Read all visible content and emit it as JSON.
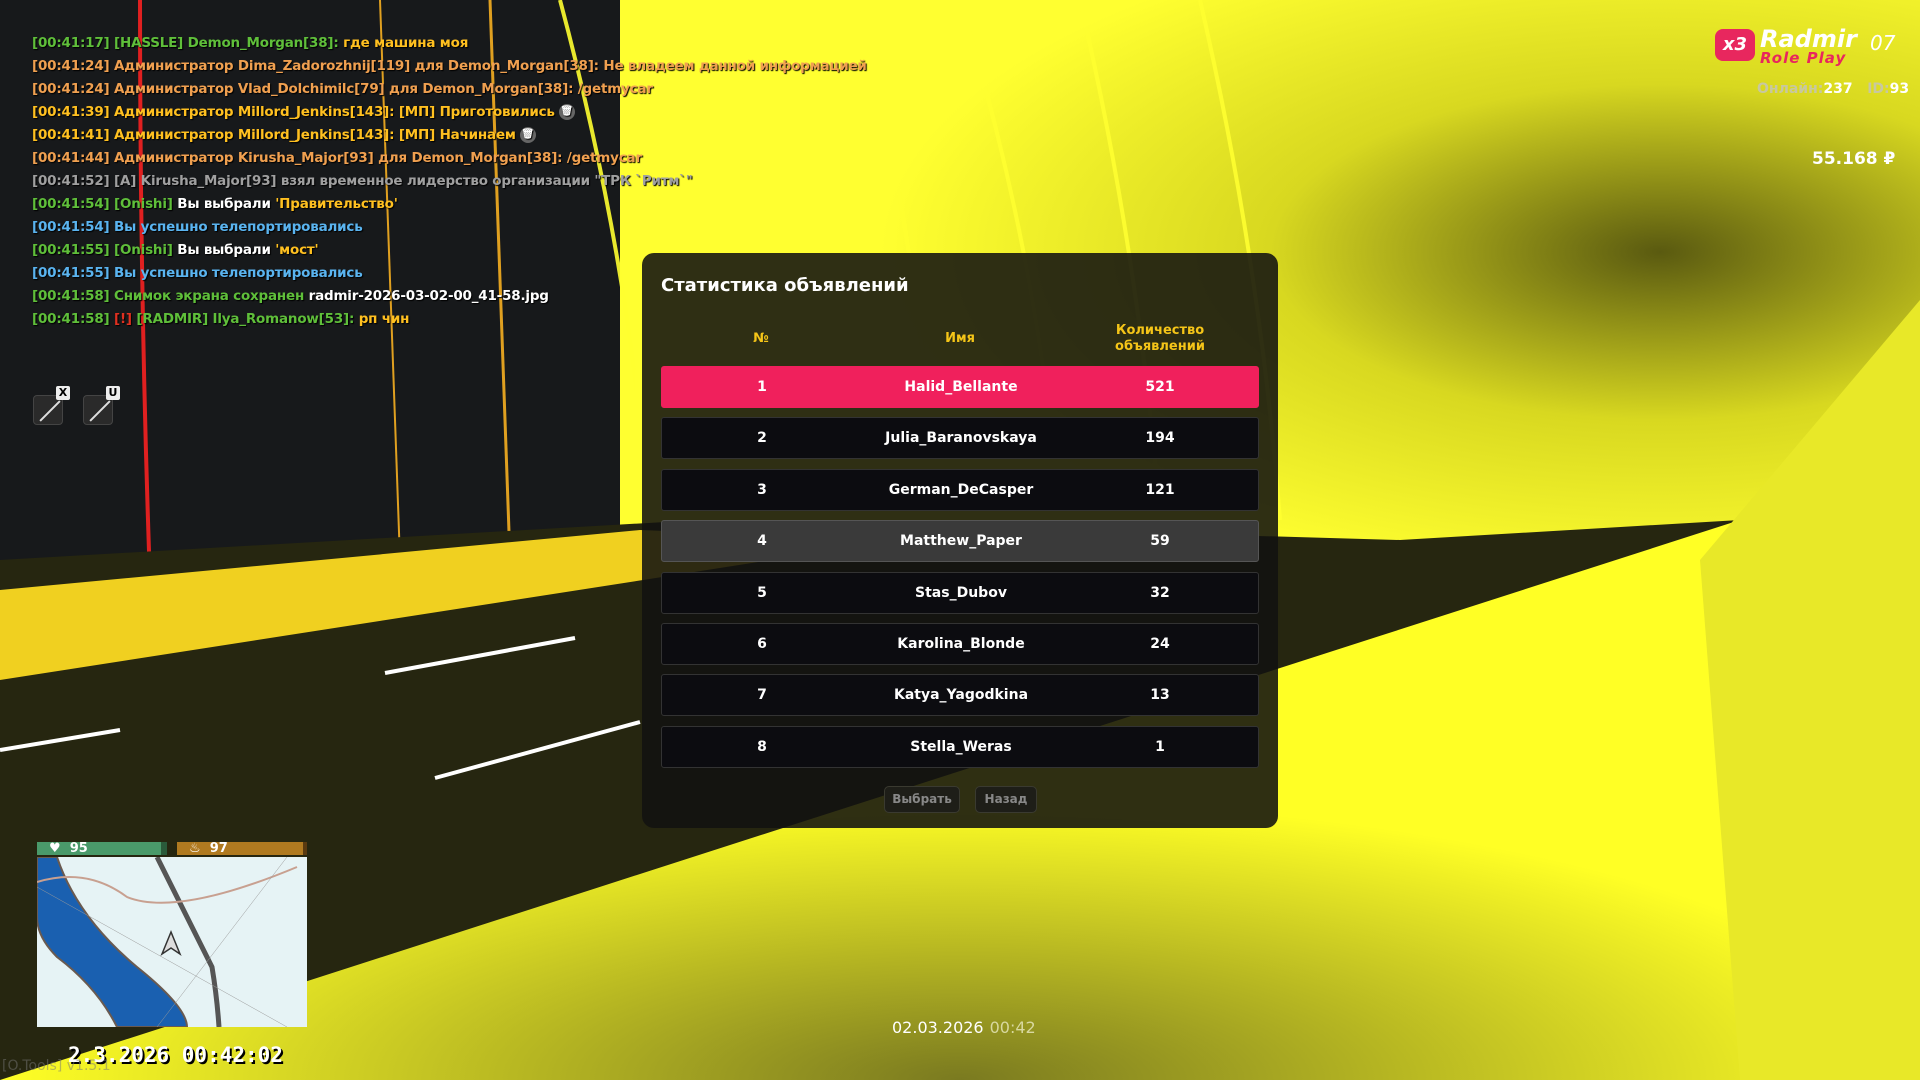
{
  "colors": {
    "accent": "#f0205c",
    "header": "#f5c518",
    "health": "#4a9a6a",
    "hunger": "#b07a20",
    "scene_yellow": "#ffff20"
  },
  "chat": [
    [
      {
        "t": "[00:41:17] [HASSLE] Demon_Morgan[38]: ",
        "c": "#5fbf3a"
      },
      {
        "t": "где машина моя",
        "c": "#ffc020"
      }
    ],
    [
      {
        "t": "[00:41:24] Администратор Dima_Zadorozhnij[119] для Demon_Morgan[38]: Не владеем данной информацией",
        "c": "#f0a050"
      }
    ],
    [
      {
        "t": "[00:41:24] Администратор Vlad_Dolchimilc[79] для Demon_Morgan[38]: /getmycar",
        "c": "#f0a050"
      }
    ],
    [
      {
        "t": "[00:41:39] Администратор Millord_Jenkins[143]: [МП] Приготовились",
        "c": "#ffc020",
        "trash": true
      }
    ],
    [
      {
        "t": "[00:41:41] Администратор Millord_Jenkins[143]: [МП] Начинаем",
        "c": "#ffc020",
        "trash": true
      }
    ],
    [
      {
        "t": "[00:41:44] Администратор Kirusha_Major[93] для Demon_Morgan[38]: /getmycar",
        "c": "#f0a050"
      }
    ],
    [
      {
        "t": "[00:41:52] [A] Kirusha_Major[93] взял временное лидерство организации \"ТРК `Ритм`\"",
        "c": "#a0a0a0"
      }
    ],
    [
      {
        "t": "[00:41:54] [Onishi] ",
        "c": "#5fbf3a"
      },
      {
        "t": "Вы выбрали ",
        "c": "#ffffff"
      },
      {
        "t": "'Правительство'",
        "c": "#ffc020"
      }
    ],
    [
      {
        "t": "[00:41:54] Вы успешно телепортировались",
        "c": "#5ab4f0"
      }
    ],
    [
      {
        "t": "[00:41:55] [Onishi] ",
        "c": "#5fbf3a"
      },
      {
        "t": "Вы выбрали ",
        "c": "#ffffff"
      },
      {
        "t": "'мост'",
        "c": "#ffc020"
      }
    ],
    [
      {
        "t": "[00:41:55] Вы успешно телепортировались",
        "c": "#5ab4f0"
      }
    ],
    [
      {
        "t": "[00:41:58] Снимок экрана сохранен ",
        "c": "#5fbf3a"
      },
      {
        "t": "radmir-2026-03-02-00_41-58.jpg",
        "c": "#ffffff"
      }
    ],
    [
      {
        "t": "[00:41:58] ",
        "c": "#5fbf3a"
      },
      {
        "t": "[!]",
        "c": "#e03020"
      },
      {
        "t": " [RADMIR] Ilya_Romanow[53]: ",
        "c": "#5fbf3a"
      },
      {
        "t": "рп чин",
        "c": "#ffc020"
      }
    ]
  ],
  "mics": [
    {
      "key": "X",
      "icon": "microphone-muted-icon"
    },
    {
      "key": "U",
      "icon": "speaker-muted-icon"
    }
  ],
  "hud": {
    "multiplier": "x3",
    "brand": "Radmir",
    "brand_sub": "Role Play",
    "server": "07",
    "online_label": "Онлайн:",
    "online": "237",
    "id_label": "ID:",
    "id": "93",
    "money": "55.168",
    "currency": "₽"
  },
  "dialog": {
    "title": "Статистика объявлений",
    "headers": [
      "№",
      "Имя",
      "Количество объявлений"
    ],
    "rows": [
      [
        "1",
        "Halid_Bellante",
        "521"
      ],
      [
        "2",
        "Julia_Baranovskaya",
        "194"
      ],
      [
        "3",
        "German_DeCasper",
        "121"
      ],
      [
        "4",
        "Matthew_Paper",
        "59"
      ],
      [
        "5",
        "Stas_Dubov",
        "32"
      ],
      [
        "6",
        "Karolina_Blonde",
        "24"
      ],
      [
        "7",
        "Katya_Yagodkina",
        "13"
      ],
      [
        "8",
        "Stella_Weras",
        "1"
      ]
    ],
    "selected_row": 1,
    "hover_row": 4,
    "select_label": "Выбрать",
    "back_label": "Назад"
  },
  "stats": {
    "health": "95",
    "hunger": "97",
    "health_fill": 0.95,
    "hunger_fill": 0.97
  },
  "clock": "2.3.2026 00:42:02",
  "otools": "[O.Tools] v1.5.1",
  "bottom_date": "02.03.2026",
  "bottom_time": "00:42"
}
